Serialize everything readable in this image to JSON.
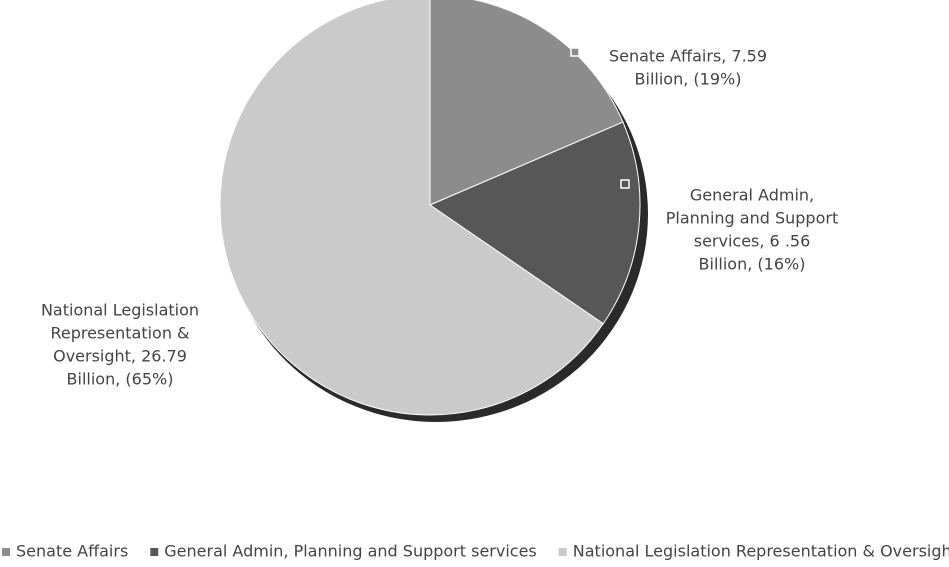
{
  "chart_data": {
    "type": "pie",
    "categories": [
      "Senate Affairs",
      "General Admin, Planning and Support services",
      "National Legislation Representation & Oversight"
    ],
    "values": [
      7.59,
      6.56,
      26.79
    ],
    "value_labels": [
      "Senate Affairs, 7.59 Billion, (19%)",
      "General Admin, Planning and Support services, 6 .56 Billion, (16%)",
      "National Legislation Representation & Oversight, 26.79 Billion, (65%)"
    ],
    "colors": [
      "#8c8c8c",
      "#575757",
      "#cacaca"
    ],
    "legend": "bottom"
  }
}
